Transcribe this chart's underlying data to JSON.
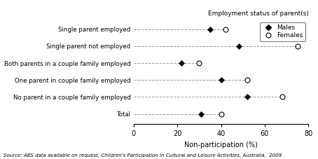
{
  "categories": [
    "Employment status of parent(s)",
    "Single parent employed",
    "Single parent not employed",
    "Both parents in a couple family employed",
    "One parent in couple family employed",
    "No parent in a couple family employed",
    "Total"
  ],
  "males": [
    null,
    35,
    48,
    22,
    40,
    52,
    31
  ],
  "females": [
    null,
    42,
    75,
    30,
    52,
    68,
    40
  ],
  "xlabel": "Non-participation (%)",
  "xlim": [
    0,
    80
  ],
  "xticks": [
    0,
    20,
    40,
    60,
    80
  ],
  "source": "Source: ABS data available on request, Children's Participation in Cultural and Leisure Activities, Australia,  2009",
  "legend_males": "Males",
  "legend_females": "Females",
  "male_color": "black",
  "female_color": "black",
  "dashed_color": "#999999",
  "title_label": "Employment status of parent(s)"
}
